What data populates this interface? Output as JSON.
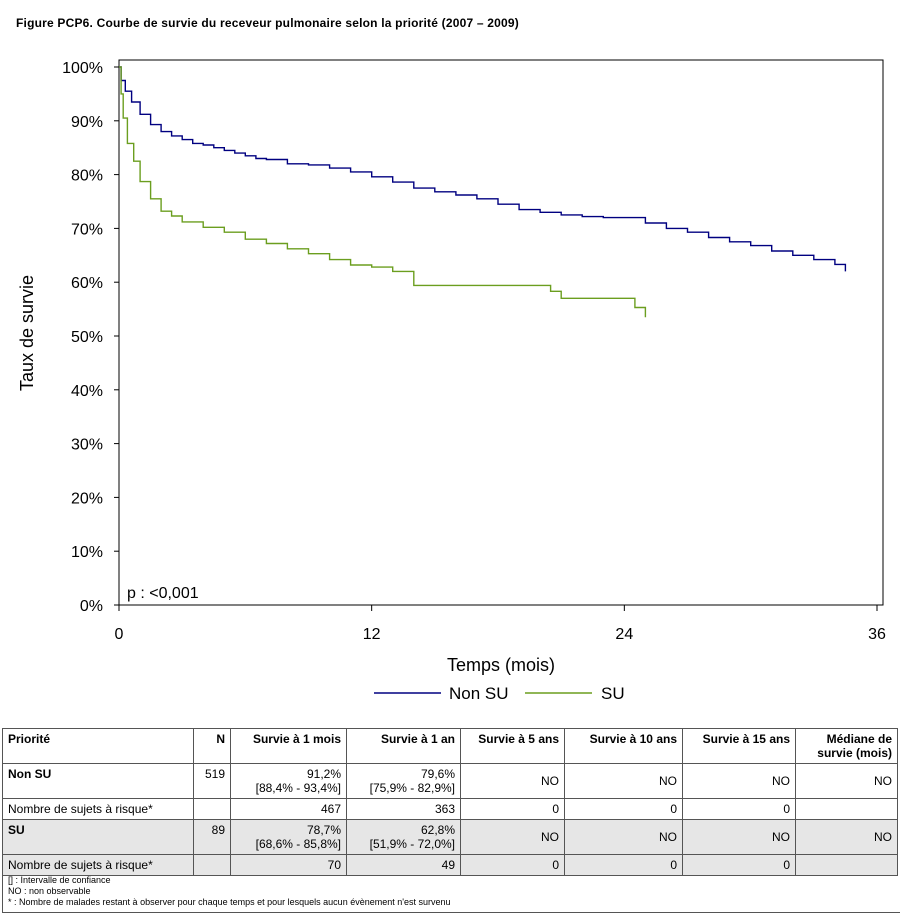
{
  "figure_title": "Figure PCP6. Courbe de survie du receveur pulmonaire selon la priorité (2007 – 2009)",
  "chart_data": {
    "type": "line",
    "xlabel": "Temps (mois)",
    "ylabel": "Taux de survie",
    "xlim": [
      0,
      36
    ],
    "ylim": [
      0,
      100
    ],
    "xticks": [
      "0",
      "12",
      "24",
      "36"
    ],
    "yticks": [
      "0%",
      "10%",
      "20%",
      "30%",
      "40%",
      "50%",
      "60%",
      "70%",
      "80%",
      "90%",
      "100%"
    ],
    "annotation": "p : <0,001",
    "legend_position": "bottom",
    "grid": false,
    "series": [
      {
        "name": "Non SU",
        "color": "#000080",
        "x": [
          0,
          0.1,
          0.3,
          0.6,
          1,
          1.5,
          2,
          2.5,
          3,
          3.5,
          4,
          4.5,
          5,
          5.5,
          6,
          6.5,
          7,
          8,
          9,
          10,
          11,
          12,
          13,
          14,
          15,
          16,
          17,
          18,
          19,
          20,
          21,
          22,
          23,
          24,
          25,
          26,
          27,
          28,
          29,
          30,
          31,
          32,
          33,
          34,
          34.5
        ],
        "y": [
          100,
          97.5,
          95.5,
          93.5,
          91.2,
          89.3,
          88,
          87.2,
          86.5,
          85.8,
          85.5,
          85,
          84.5,
          84,
          83.5,
          83,
          82.8,
          82,
          81.8,
          81.2,
          80.5,
          79.6,
          78.6,
          77.5,
          76.8,
          76.2,
          75.5,
          74.5,
          73.5,
          73,
          72.5,
          72.2,
          72,
          72,
          71,
          70,
          69.3,
          68.3,
          67.5,
          66.8,
          65.8,
          65,
          64.2,
          63.3,
          62
        ]
      },
      {
        "name": "SU",
        "color": "#6b9e1f",
        "x": [
          0,
          0.1,
          0.2,
          0.4,
          0.7,
          1,
          1.5,
          2,
          2.5,
          3,
          4,
          5,
          6,
          7,
          8,
          9,
          10,
          11,
          12,
          12.5,
          13,
          14,
          16,
          18,
          19,
          20,
          20.5,
          21,
          22,
          23,
          24,
          24.5,
          25
        ],
        "y": [
          100,
          95,
          90.5,
          85.8,
          82.5,
          78.7,
          75.5,
          73.2,
          72.3,
          71.2,
          70.2,
          69.3,
          68,
          67.2,
          66.2,
          65.3,
          64.2,
          63.2,
          62.8,
          62.8,
          62,
          59.4,
          59.4,
          59.4,
          59.4,
          59.4,
          58.3,
          57,
          57,
          57,
          57,
          55.3,
          53.5
        ]
      }
    ]
  },
  "table": {
    "headers": [
      "Priorité",
      "N",
      "Survie à 1 mois",
      "Survie à 1 an",
      "Survie à 5 ans",
      "Survie à 10 ans",
      "Survie à 15 ans",
      "Médiane de survie (mois)"
    ],
    "groups": [
      {
        "label": "Non SU",
        "n": "519",
        "surv_1m": "91,2%",
        "ci_1m": "[88,4% - 93,4%]",
        "surv_1a": "79,6%",
        "ci_1a": "[75,9% - 82,9%]",
        "surv_5a": "NO",
        "surv_10a": "NO",
        "surv_15a": "NO",
        "median": "NO",
        "risk_label": "Nombre de sujets à risque*",
        "risk": [
          "467",
          "363",
          "0",
          "0",
          "0"
        ]
      },
      {
        "label": "SU",
        "n": "89",
        "surv_1m": "78,7%",
        "ci_1m": "[68,6% - 85,8%]",
        "surv_1a": "62,8%",
        "ci_1a": "[51,9% - 72,0%]",
        "surv_5a": "NO",
        "surv_10a": "NO",
        "surv_15a": "NO",
        "median": "NO",
        "risk_label": "Nombre de sujets à risque*",
        "risk": [
          "70",
          "49",
          "0",
          "0",
          "0"
        ]
      }
    ]
  },
  "notes": [
    "[] : Intervalle de confiance",
    "NO : non observable",
    "* : Nombre de malades restant à observer pour chaque temps et pour lesquels aucun évènement n'est survenu"
  ]
}
